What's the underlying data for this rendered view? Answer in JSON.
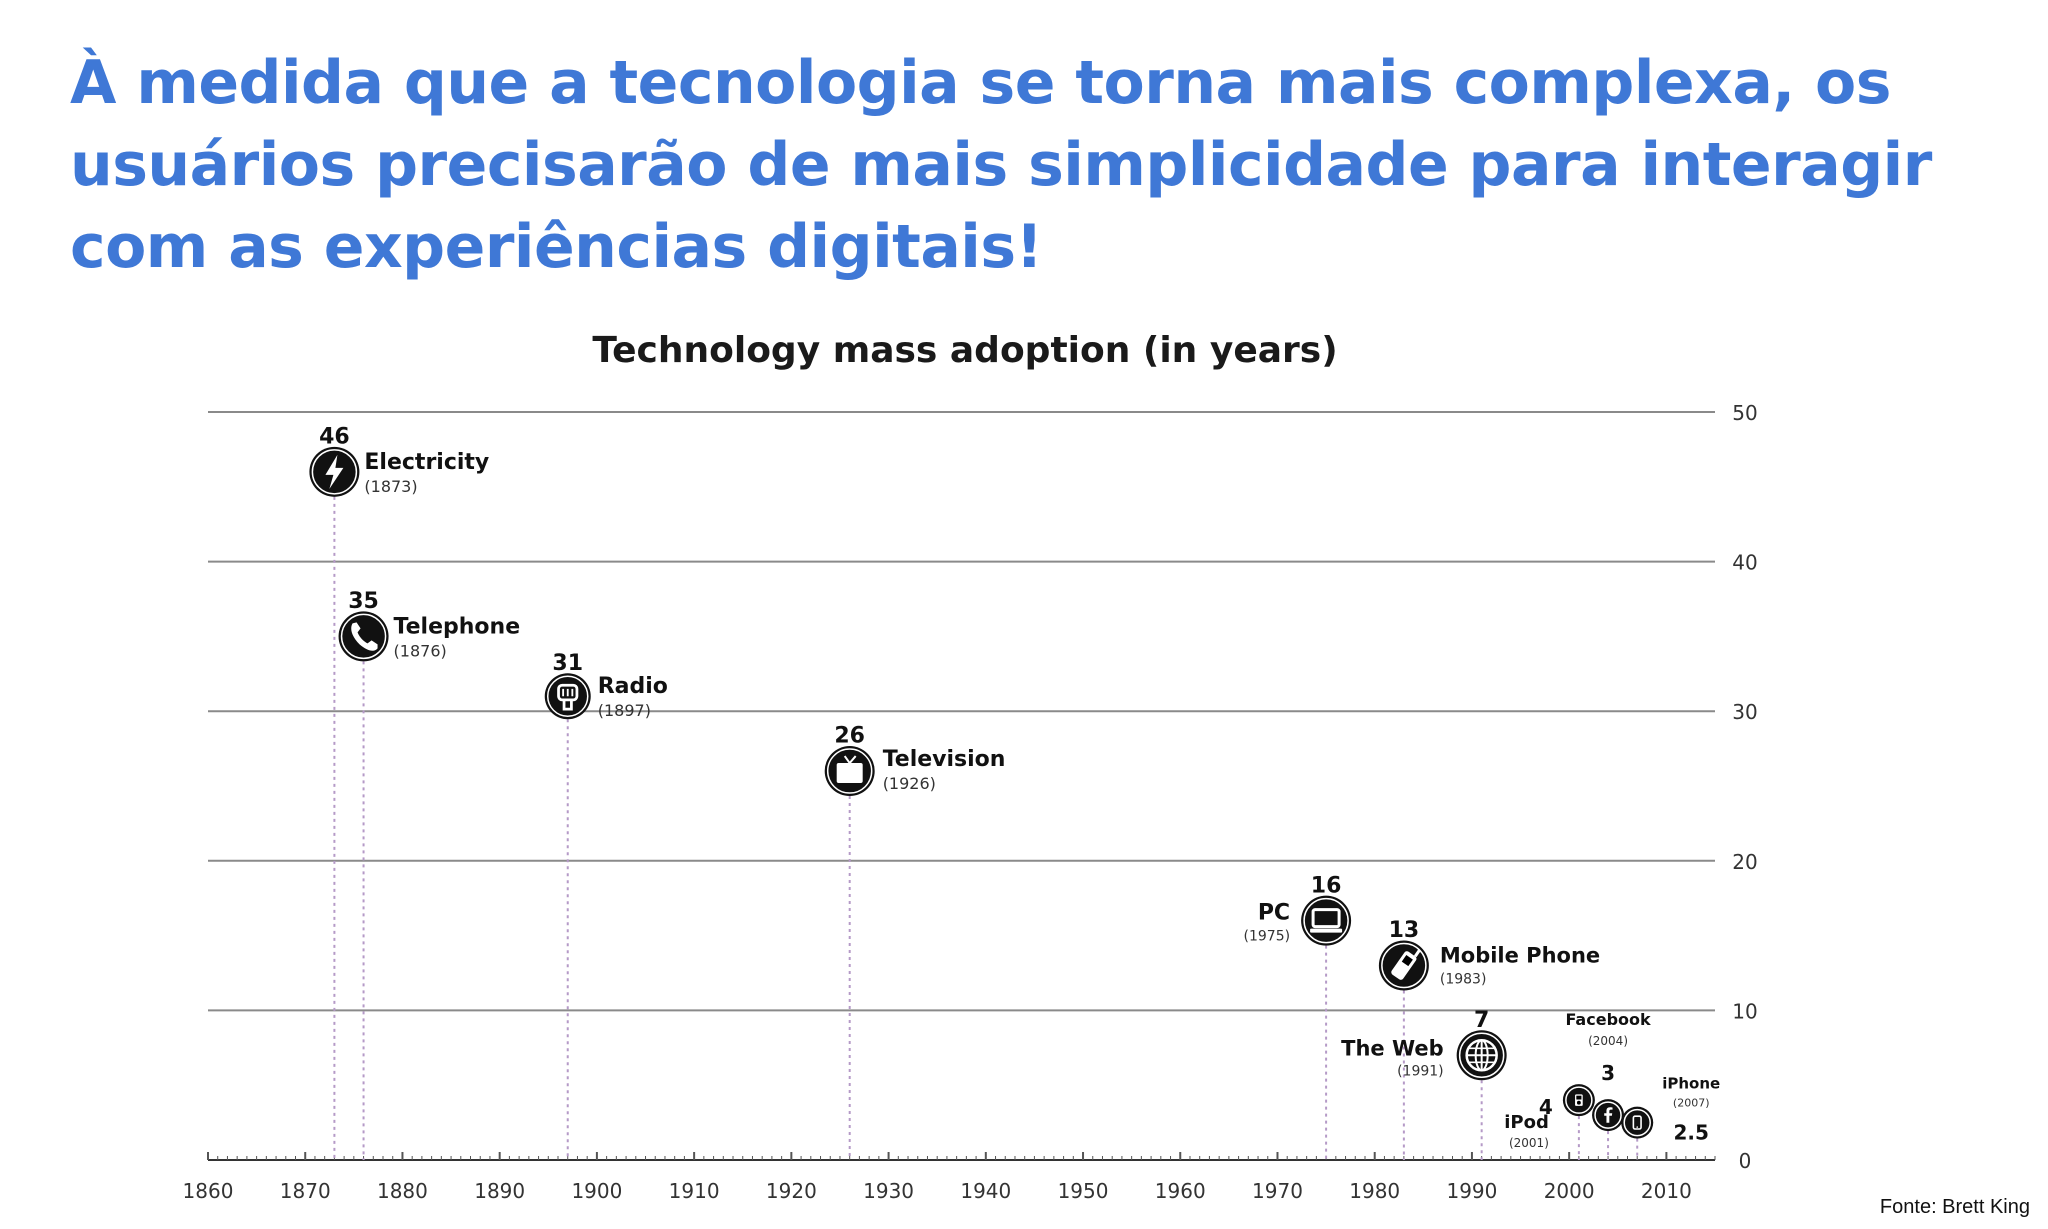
{
  "headline": {
    "line1": "À medida que a tecnologia se torna mais complexa, os",
    "line2": "usuários precisarão de mais simplicidade para interagir",
    "line3": "com as experiências digitais!"
  },
  "source": "Fonte: Brett King",
  "chart_data": {
    "type": "scatter",
    "title": "Technology mass adoption (in years)",
    "xlabel": "",
    "ylabel": "",
    "xlim": [
      1860,
      2015
    ],
    "ylim": [
      0,
      50
    ],
    "x_ticks": [
      1860,
      1870,
      1880,
      1890,
      1900,
      1910,
      1920,
      1930,
      1940,
      1950,
      1960,
      1970,
      1980,
      1990,
      2000,
      2010
    ],
    "y_ticks": [
      0,
      10,
      20,
      30,
      40,
      50
    ],
    "y_axis_side": "right",
    "grid": "horizontal",
    "points": [
      {
        "label": "Electricity",
        "year_label": "(1873)",
        "x": 1873,
        "y": 46,
        "value_label": "46",
        "icon": "lightning-icon"
      },
      {
        "label": "Telephone",
        "year_label": "(1876)",
        "x": 1876,
        "y": 35,
        "value_label": "35",
        "icon": "phone-icon"
      },
      {
        "label": "Radio",
        "year_label": "(1897)",
        "x": 1897,
        "y": 31,
        "value_label": "31",
        "icon": "radio-icon"
      },
      {
        "label": "Television",
        "year_label": "(1926)",
        "x": 1926,
        "y": 26,
        "value_label": "26",
        "icon": "tv-icon"
      },
      {
        "label": "PC",
        "year_label": "(1975)",
        "x": 1975,
        "y": 16,
        "value_label": "16",
        "icon": "computer-icon"
      },
      {
        "label": "Mobile Phone",
        "year_label": "(1983)",
        "x": 1983,
        "y": 13,
        "value_label": "13",
        "icon": "mobile-phone-icon"
      },
      {
        "label": "The Web",
        "year_label": "(1991)",
        "x": 1991,
        "y": 7,
        "value_label": "7",
        "icon": "globe-icon"
      },
      {
        "label": "iPod",
        "year_label": "(2001)",
        "x": 2001,
        "y": 4,
        "value_label": "4",
        "icon": "ipod-icon"
      },
      {
        "label": "Facebook",
        "year_label": "(2004)",
        "x": 2004,
        "y": 3,
        "value_label": "3",
        "icon": "facebook-icon"
      },
      {
        "label": "iPhone",
        "year_label": "(2007)",
        "x": 2007,
        "y": 2.5,
        "value_label": "2.5",
        "icon": "smartphone-icon"
      }
    ]
  }
}
